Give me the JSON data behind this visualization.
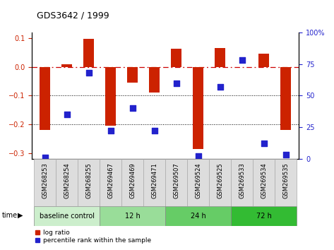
{
  "title": "GDS3642 / 1999",
  "samples": [
    "GSM268253",
    "GSM268254",
    "GSM268255",
    "GSM269467",
    "GSM269469",
    "GSM269471",
    "GSM269507",
    "GSM269524",
    "GSM269525",
    "GSM269533",
    "GSM269534",
    "GSM269535"
  ],
  "log_ratio": [
    -0.22,
    0.01,
    0.097,
    -0.205,
    -0.055,
    -0.09,
    0.063,
    -0.285,
    0.065,
    0.0,
    0.045,
    -0.22
  ],
  "percentile_rank": [
    1,
    35,
    68,
    22,
    40,
    22,
    60,
    2,
    57,
    78,
    12,
    3
  ],
  "groups": [
    {
      "label": "baseline control",
      "start": 0,
      "end": 3,
      "color": "#cceecc"
    },
    {
      "label": "12 h",
      "start": 3,
      "end": 6,
      "color": "#99dd99"
    },
    {
      "label": "24 h",
      "start": 6,
      "end": 9,
      "color": "#66cc66"
    },
    {
      "label": "72 h",
      "start": 9,
      "end": 12,
      "color": "#33bb33"
    }
  ],
  "bar_color": "#cc2200",
  "dot_color": "#2222cc",
  "ylim_left": [
    -0.32,
    0.12
  ],
  "ylim_right": [
    0,
    100
  ],
  "yticks_left": [
    -0.3,
    -0.2,
    -0.1,
    0.0,
    0.1
  ],
  "yticks_right": [
    0,
    25,
    50,
    75,
    100
  ],
  "ytick_right_labels": [
    "0",
    "25",
    "50",
    "75",
    "100%"
  ],
  "hline_zero_color": "#cc0000",
  "dotted_line_color": "#000000",
  "background_color": "#ffffff",
  "label_bg": "#dddddd",
  "bar_width": 0.5
}
